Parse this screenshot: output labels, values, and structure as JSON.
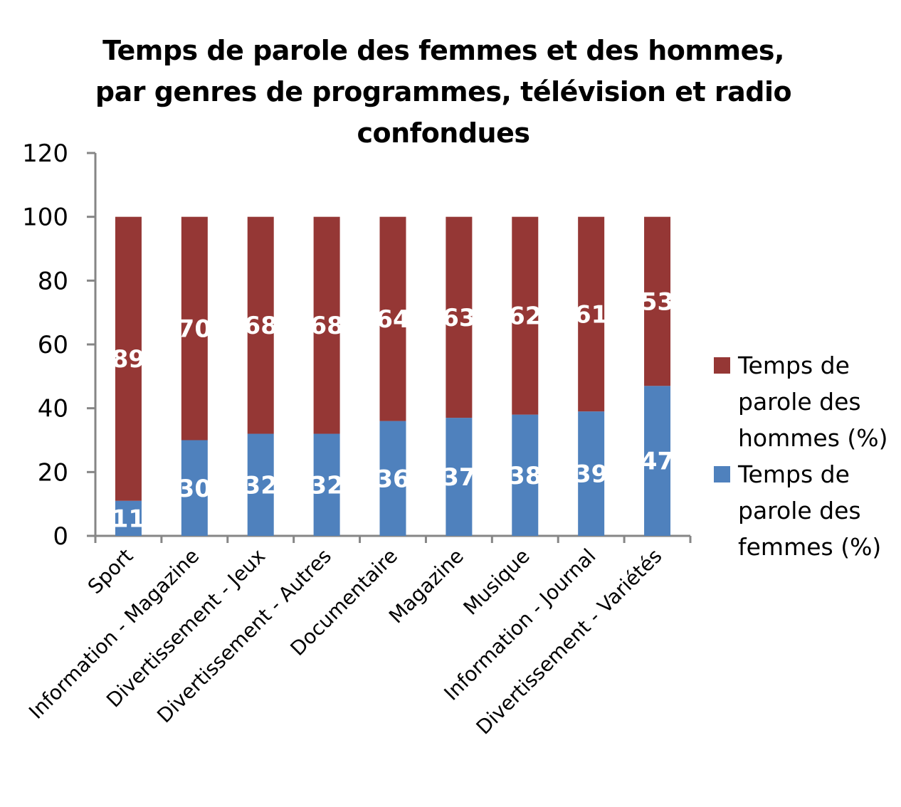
{
  "chart_data": {
    "type": "bar",
    "stacked": true,
    "title_lines": [
      "Temps de parole des femmes et des hommes,",
      "par genres de programmes, télévision et radio",
      "confondues"
    ],
    "title": "Temps de parole des femmes et des hommes, par genres de programmes, télévision et radio confondues",
    "xlabel": "",
    "ylabel": "",
    "ylim": [
      0,
      120
    ],
    "yticks": [
      0,
      20,
      40,
      60,
      80,
      100,
      120
    ],
    "grid": false,
    "legend_position": "right",
    "categories": [
      "Sport",
      "Information - Magazine",
      "Divertissement - Jeux",
      "Divertissement - Autres",
      "Documentaire",
      "Magazine",
      "Musique",
      "Information - Journal",
      "Divertissement - Variétés"
    ],
    "series": [
      {
        "name": "Temps de parole des femmes (%)",
        "legend_lines": [
          "Temps de",
          "parole des",
          "femmes (%)"
        ],
        "color": "#4F81BD",
        "values": [
          11,
          30,
          32,
          32,
          36,
          37,
          38,
          39,
          47
        ]
      },
      {
        "name": "Temps de parole des hommes (%)",
        "legend_lines": [
          "Temps de",
          "parole des",
          "hommes (%)"
        ],
        "color": "#953735",
        "values": [
          89,
          70,
          68,
          68,
          64,
          63,
          62,
          61,
          53
        ]
      }
    ],
    "legend_order": [
      1,
      0
    ],
    "axis_color": "#868686"
  }
}
